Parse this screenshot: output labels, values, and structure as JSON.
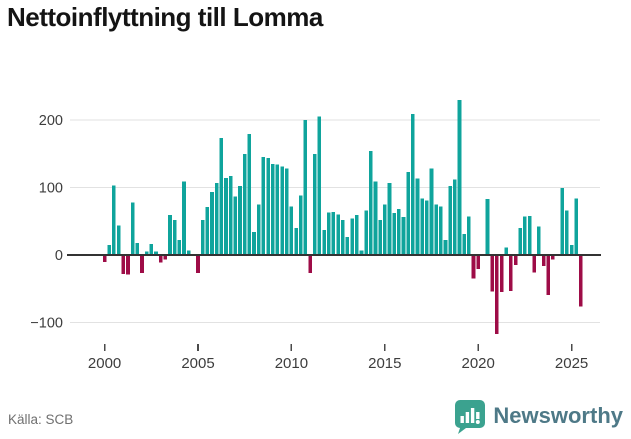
{
  "header": {
    "title": "Nettoinflyttning till Lomma"
  },
  "footer": {
    "source": "Källa: SCB",
    "logo_text": "Newsworthy"
  },
  "chart_data": {
    "type": "bar",
    "title": "Nettoinflyttning till Lomma",
    "xlabel": "",
    "ylabel": "",
    "x_unit": "quarter",
    "grid": "horizontal",
    "legend": "none",
    "ylim": [
      -150,
      245
    ],
    "x_ticks": [
      2000,
      2005,
      2010,
      2015,
      2020,
      2025
    ],
    "y_ticks": [
      {
        "v": 200,
        "label": "200"
      },
      {
        "v": 100,
        "label": "100"
      },
      {
        "v": 0,
        "label": "0"
      },
      {
        "v": -100,
        "label": "−100"
      }
    ],
    "colors": {
      "positive": "#0FA49C",
      "negative": "#9E0C47",
      "gridline": "#E2E2E2",
      "zero_line": "#333333",
      "tick_text": "#3D3D3D"
    },
    "years": [
      {
        "year": 2000,
        "values": [
          -10,
          15,
          103,
          44
        ]
      },
      {
        "year": 2001,
        "values": [
          -28,
          -29,
          78,
          18
        ]
      },
      {
        "year": 2002,
        "values": [
          -27,
          5,
          16,
          5
        ]
      },
      {
        "year": 2003,
        "values": [
          -11,
          -7,
          59,
          52
        ]
      },
      {
        "year": 2004,
        "values": [
          22,
          109,
          7,
          0
        ]
      },
      {
        "year": 2005,
        "values": [
          -27,
          52,
          71,
          93
        ]
      },
      {
        "year": 2006,
        "values": [
          107,
          173,
          114,
          117
        ]
      },
      {
        "year": 2007,
        "values": [
          87,
          102,
          150,
          179
        ]
      },
      {
        "year": 2008,
        "values": [
          34,
          75,
          145,
          144
        ]
      },
      {
        "year": 2009,
        "values": [
          135,
          134,
          131,
          128
        ]
      },
      {
        "year": 2010,
        "values": [
          72,
          40,
          88,
          200
        ]
      },
      {
        "year": 2011,
        "values": [
          -27,
          150,
          205,
          37
        ]
      },
      {
        "year": 2012,
        "values": [
          63,
          64,
          60,
          52
        ]
      },
      {
        "year": 2013,
        "values": [
          27,
          54,
          59,
          7
        ]
      },
      {
        "year": 2014,
        "values": [
          66,
          154,
          109,
          52
        ]
      },
      {
        "year": 2015,
        "values": [
          75,
          107,
          62,
          68
        ]
      },
      {
        "year": 2016,
        "values": [
          56,
          123,
          209,
          113
        ]
      },
      {
        "year": 2017,
        "values": [
          84,
          81,
          128,
          75
        ]
      },
      {
        "year": 2018,
        "values": [
          72,
          22,
          102,
          112
        ]
      },
      {
        "year": 2019,
        "values": [
          230,
          31,
          57,
          -35
        ]
      },
      {
        "year": 2020,
        "values": [
          -21,
          0,
          83,
          -54
        ]
      },
      {
        "year": 2021,
        "values": [
          -117,
          -55,
          11,
          -53
        ]
      },
      {
        "year": 2022,
        "values": [
          -15,
          40,
          57,
          58
        ]
      },
      {
        "year": 2023,
        "values": [
          -26,
          42,
          -16,
          -59
        ]
      },
      {
        "year": 2024,
        "values": [
          -7,
          0,
          99,
          66
        ]
      },
      {
        "year": 2025,
        "values": [
          15,
          84,
          -76
        ]
      }
    ]
  }
}
